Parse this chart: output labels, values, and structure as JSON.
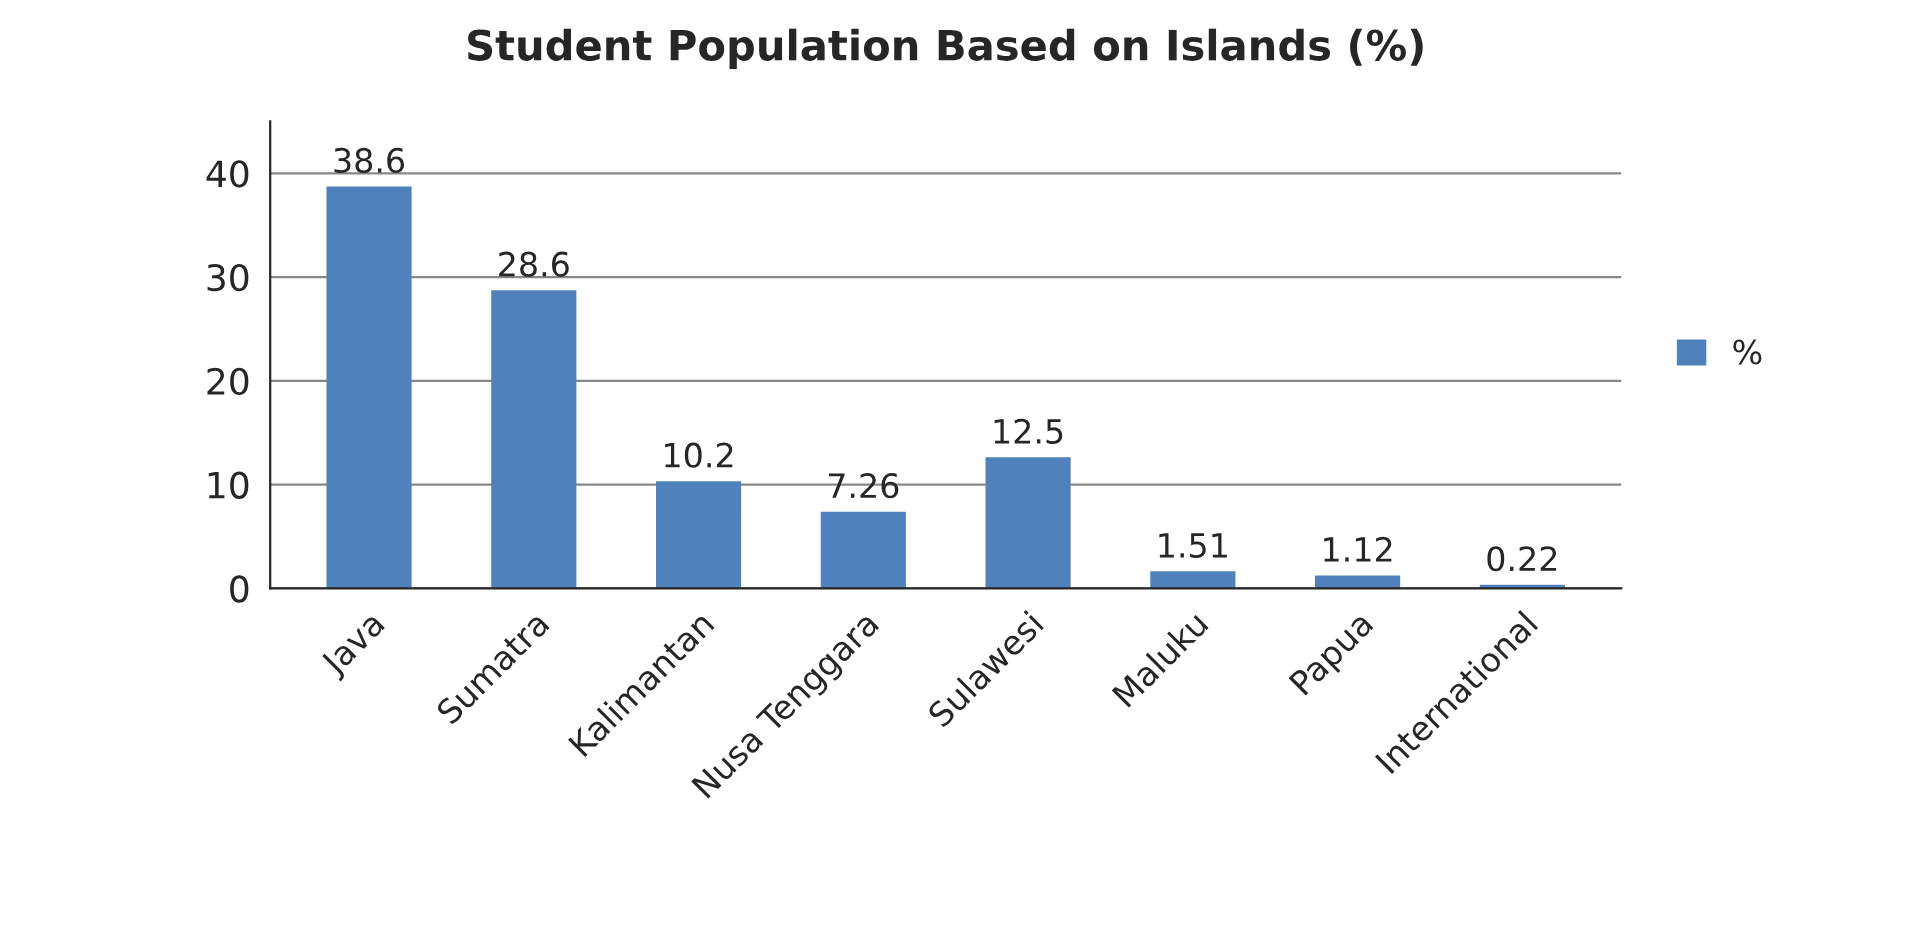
{
  "chart_data": {
    "type": "bar",
    "title": "Student Population Based on Islands (%)",
    "categories": [
      "Java",
      "Sumatra",
      "Kalimantan",
      "Nusa Tenggara",
      "Sulawesi",
      "Maluku",
      "Papua",
      "International"
    ],
    "series": [
      {
        "name": "%",
        "color": "#4f81bd",
        "values": [
          38.6,
          28.6,
          10.2,
          7.26,
          12.5,
          1.51,
          1.12,
          0.22
        ]
      }
    ],
    "ylim": [
      0,
      45
    ],
    "yticks": [
      0,
      10,
      20,
      30,
      40
    ],
    "grid": "y",
    "legend": "right",
    "data_labels": true
  }
}
